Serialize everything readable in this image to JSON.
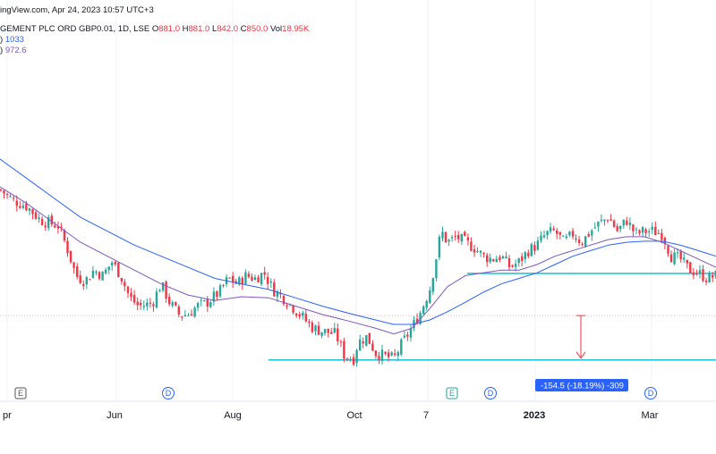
{
  "header": {
    "watermark": "ingView.com, Apr 24, 2023 10:57 UTC+3",
    "symbol_name": "GEMENT PLC ORD GBP0.01, 1D, LSE",
    "o_label": "O",
    "o_value": "881.0",
    "h_label": "H",
    "h_value": "881.0",
    "l_label": "L",
    "l_value": "842.0",
    "c_label": "C",
    "c_value": "850.0",
    "vol_label": "Vol",
    "vol_value": "18.95K",
    "ma1_label": ")",
    "ma1_value": "1033",
    "ma2_label": ")",
    "ma2_value": "972.6"
  },
  "measure": {
    "label": "-154.5 (-18.19%) -309"
  },
  "x_ticks": [
    "pr",
    "Jun",
    "Aug",
    "Oct",
    "7",
    "2023",
    "Mar"
  ],
  "events": [
    {
      "letter": "E",
      "kind": "earnings"
    },
    {
      "letter": "D",
      "kind": "dividend"
    },
    {
      "letter": "E",
      "kind": "earnings"
    },
    {
      "letter": "D",
      "kind": "dividend"
    },
    {
      "letter": "D",
      "kind": "dividend"
    }
  ],
  "colors": {
    "up": "#26a69a",
    "down": "#f23645",
    "ma_fast": "#7e57c2",
    "ma_slow": "#2962ff",
    "level": "#00bcd4",
    "measure": "#f23645",
    "measure_label_bg": "#2962ff"
  },
  "chart_data": {
    "type": "candlestick",
    "ylim": [
      780,
      1400
    ],
    "x_ticks": [
      "pr",
      "Jun",
      "Aug",
      "Oct",
      "7",
      "2023",
      "Mar"
    ],
    "series": [
      {
        "kind": "price",
        "close_path": [
          [
            0,
            1155
          ],
          [
            15,
            1135
          ],
          [
            30,
            1125
          ],
          [
            45,
            1100
          ],
          [
            55,
            1095
          ],
          [
            65,
            1090
          ],
          [
            75,
            1050
          ],
          [
            85,
            1000
          ],
          [
            95,
            990
          ],
          [
            105,
            1010
          ],
          [
            115,
            1000
          ],
          [
            125,
            1025
          ],
          [
            135,
            1000
          ],
          [
            145,
            960
          ],
          [
            155,
            945
          ],
          [
            170,
            950
          ],
          [
            180,
            985
          ],
          [
            190,
            950
          ],
          [
            200,
            930
          ],
          [
            210,
            930
          ],
          [
            220,
            945
          ],
          [
            230,
            950
          ],
          [
            245,
            970
          ],
          [
            255,
            995
          ],
          [
            265,
            985
          ],
          [
            275,
            1000
          ],
          [
            285,
            995
          ],
          [
            295,
            1005
          ],
          [
            305,
            975
          ],
          [
            320,
            955
          ],
          [
            335,
            930
          ],
          [
            350,
            905
          ],
          [
            360,
            900
          ],
          [
            375,
            895
          ],
          [
            385,
            855
          ],
          [
            395,
            850
          ],
          [
            400,
            880
          ],
          [
            410,
            890
          ],
          [
            420,
            860
          ],
          [
            430,
            855
          ],
          [
            440,
            850
          ],
          [
            450,
            880
          ],
          [
            460,
            905
          ],
          [
            470,
            935
          ],
          [
            480,
            975
          ],
          [
            487,
            1030
          ],
          [
            493,
            1080
          ],
          [
            500,
            1060
          ],
          [
            510,
            1070
          ],
          [
            520,
            1060
          ],
          [
            530,
            1050
          ],
          [
            540,
            1035
          ],
          [
            550,
            1030
          ],
          [
            560,
            1035
          ],
          [
            570,
            1015
          ],
          [
            580,
            1025
          ],
          [
            590,
            1045
          ],
          [
            600,
            1055
          ],
          [
            610,
            1075
          ],
          [
            620,
            1080
          ],
          [
            630,
            1060
          ],
          [
            640,
            1075
          ],
          [
            650,
            1060
          ],
          [
            660,
            1080
          ],
          [
            670,
            1095
          ],
          [
            680,
            1105
          ],
          [
            690,
            1080
          ],
          [
            700,
            1100
          ],
          [
            710,
            1075
          ],
          [
            720,
            1080
          ],
          [
            730,
            1080
          ],
          [
            740,
            1075
          ],
          [
            750,
            1035
          ],
          [
            760,
            1030
          ],
          [
            770,
            1010
          ],
          [
            780,
            1005
          ],
          [
            790,
            995
          ],
          [
            800,
            1000
          ]
        ]
      },
      {
        "kind": "sma_fast",
        "color": "#7e57c2",
        "path": [
          [
            0,
            1160
          ],
          [
            30,
            1130
          ],
          [
            60,
            1095
          ],
          [
            90,
            1060
          ],
          [
            120,
            1035
          ],
          [
            150,
            1010
          ],
          [
            180,
            985
          ],
          [
            210,
            965
          ],
          [
            240,
            955
          ],
          [
            270,
            962
          ],
          [
            300,
            960
          ],
          [
            330,
            945
          ],
          [
            360,
            930
          ],
          [
            390,
            918
          ],
          [
            420,
            905
          ],
          [
            440,
            895
          ],
          [
            460,
            905
          ],
          [
            480,
            940
          ],
          [
            500,
            980
          ],
          [
            520,
            1000
          ],
          [
            540,
            1005
          ],
          [
            560,
            1010
          ],
          [
            580,
            1010
          ],
          [
            600,
            1020
          ],
          [
            620,
            1035
          ],
          [
            650,
            1050
          ],
          [
            680,
            1065
          ],
          [
            700,
            1070
          ],
          [
            720,
            1070
          ],
          [
            740,
            1060
          ],
          [
            760,
            1045
          ],
          [
            780,
            1030
          ],
          [
            800,
            1015
          ]
        ]
      },
      {
        "kind": "sma_slow",
        "color": "#2962ff",
        "path": [
          [
            0,
            1210
          ],
          [
            30,
            1175
          ],
          [
            60,
            1140
          ],
          [
            90,
            1105
          ],
          [
            120,
            1080
          ],
          [
            150,
            1055
          ],
          [
            180,
            1035
          ],
          [
            210,
            1015
          ],
          [
            240,
            995
          ],
          [
            270,
            985
          ],
          [
            300,
            975
          ],
          [
            330,
            960
          ],
          [
            360,
            945
          ],
          [
            390,
            932
          ],
          [
            420,
            920
          ],
          [
            440,
            912
          ],
          [
            460,
            912
          ],
          [
            480,
            920
          ],
          [
            500,
            935
          ],
          [
            520,
            952
          ],
          [
            540,
            970
          ],
          [
            560,
            985
          ],
          [
            580,
            995
          ],
          [
            600,
            1005
          ],
          [
            620,
            1020
          ],
          [
            640,
            1035
          ],
          [
            660,
            1045
          ],
          [
            680,
            1055
          ],
          [
            700,
            1060
          ],
          [
            720,
            1062
          ],
          [
            740,
            1062
          ],
          [
            760,
            1055
          ],
          [
            780,
            1045
          ],
          [
            800,
            1035
          ]
        ]
      },
      {
        "kind": "horizontal_level",
        "name": "support-upper",
        "price": 1004,
        "x_from": 522,
        "x_to": 800
      },
      {
        "kind": "horizontal_level",
        "name": "support-lower",
        "price": 848,
        "x_from": 300,
        "x_to": 800
      },
      {
        "kind": "horizontal_level",
        "name": "dotted-last",
        "price": 928,
        "x_from": 0,
        "x_to": 800
      }
    ]
  }
}
